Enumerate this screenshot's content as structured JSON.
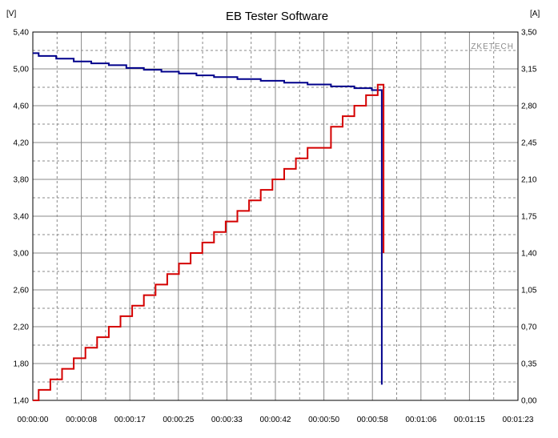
{
  "chart_data": {
    "type": "line",
    "title": "EB Tester Software",
    "watermark": "ZKETECH",
    "left_unit": "[V]",
    "right_unit": "[A]",
    "grid": true,
    "x_ticks": [
      "00:00:00",
      "00:00:08",
      "00:00:17",
      "00:00:25",
      "00:00:33",
      "00:00:42",
      "00:00:50",
      "00:00:58",
      "00:01:06",
      "00:01:15",
      "00:01:23"
    ],
    "left_ticks": [
      "1,40",
      "1,80",
      "2,20",
      "2,60",
      "3,00",
      "3,40",
      "3,80",
      "4,20",
      "4,60",
      "5,00",
      "5,40"
    ],
    "right_ticks": [
      "0,00",
      "0,35",
      "0,70",
      "1,05",
      "1,40",
      "1,75",
      "2,10",
      "2,45",
      "2,80",
      "3,15",
      "3,50"
    ],
    "x_range_s": [
      0,
      83
    ],
    "y_left_range": [
      1.4,
      5.4
    ],
    "y_right_range": [
      0,
      3.5
    ],
    "series": [
      {
        "axis": "left",
        "color": "#00008b",
        "points": [
          [
            0,
            5.17
          ],
          [
            1,
            5.14
          ],
          [
            4,
            5.11
          ],
          [
            7,
            5.08
          ],
          [
            10,
            5.06
          ],
          [
            13,
            5.04
          ],
          [
            16,
            5.01
          ],
          [
            19,
            4.99
          ],
          [
            22,
            4.97
          ],
          [
            25,
            4.95
          ],
          [
            28,
            4.93
          ],
          [
            31,
            4.91
          ],
          [
            35,
            4.89
          ],
          [
            39,
            4.87
          ],
          [
            43,
            4.85
          ],
          [
            47,
            4.83
          ],
          [
            51,
            4.81
          ],
          [
            55,
            4.79
          ],
          [
            58,
            4.77
          ],
          [
            59.7,
            4.76
          ],
          [
            59.7,
            1.57
          ],
          [
            59.7,
            3.0
          ]
        ]
      },
      {
        "axis": "right",
        "color": "#d40000",
        "points": [
          [
            0,
            0.0
          ],
          [
            1,
            0.1
          ],
          [
            3,
            0.2
          ],
          [
            5,
            0.3
          ],
          [
            7,
            0.4
          ],
          [
            9,
            0.5
          ],
          [
            11,
            0.6
          ],
          [
            13,
            0.7
          ],
          [
            15,
            0.8
          ],
          [
            17,
            0.9
          ],
          [
            19,
            1.0
          ],
          [
            21,
            1.1
          ],
          [
            23,
            1.2
          ],
          [
            25,
            1.3
          ],
          [
            27,
            1.4
          ],
          [
            29,
            1.5
          ],
          [
            31,
            1.6
          ],
          [
            33,
            1.7
          ],
          [
            35,
            1.8
          ],
          [
            37,
            1.9
          ],
          [
            39,
            2.0
          ],
          [
            41,
            2.1
          ],
          [
            43,
            2.2
          ],
          [
            45,
            2.3
          ],
          [
            47,
            2.4
          ],
          [
            49,
            2.4
          ],
          [
            51,
            2.6
          ],
          [
            53,
            2.7
          ],
          [
            55,
            2.8
          ],
          [
            57,
            2.9
          ],
          [
            59,
            3.0
          ],
          [
            60,
            3.0
          ],
          [
            60,
            1.4
          ]
        ]
      }
    ]
  }
}
